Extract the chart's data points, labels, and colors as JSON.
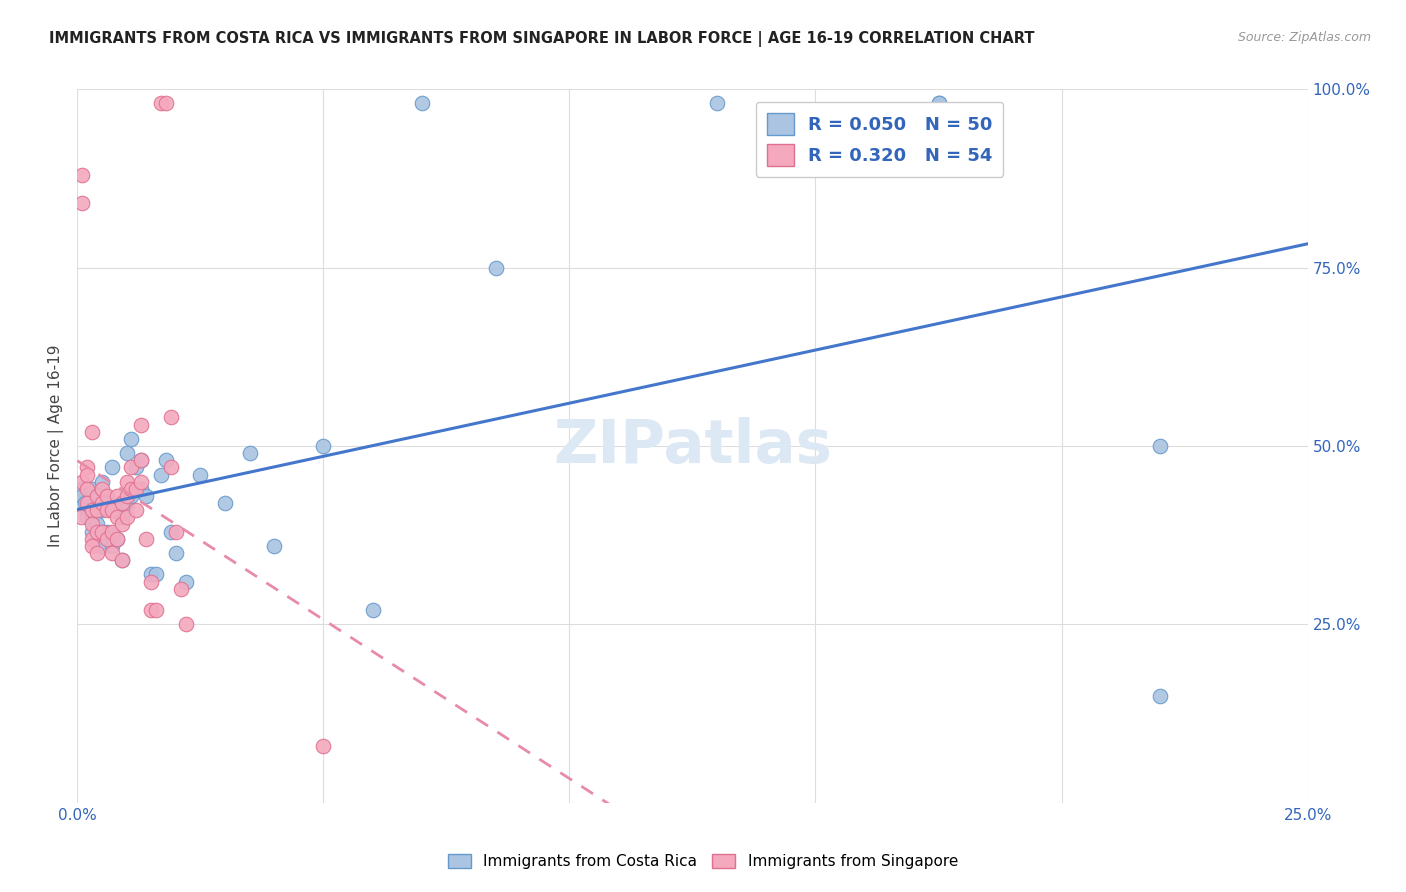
{
  "title": "IMMIGRANTS FROM COSTA RICA VS IMMIGRANTS FROM SINGAPORE IN LABOR FORCE | AGE 16-19 CORRELATION CHART",
  "source": "Source: ZipAtlas.com",
  "ylabel": "In Labor Force | Age 16-19",
  "xlim": [
    0.0,
    0.25
  ],
  "ylim": [
    0.0,
    1.0
  ],
  "xtick_pos": [
    0.0,
    0.05,
    0.1,
    0.15,
    0.2,
    0.25
  ],
  "xtick_labels": [
    "0.0%",
    "",
    "",
    "",
    "",
    "25.0%"
  ],
  "ytick_pos": [
    0.0,
    0.25,
    0.5,
    0.75,
    1.0
  ],
  "ytick_labels_right": [
    "",
    "25.0%",
    "50.0%",
    "75.0%",
    "100.0%"
  ],
  "costa_rica_color": "#aac4e2",
  "singapore_color": "#f4a9be",
  "costa_rica_edge": "#6699cc",
  "singapore_edge": "#e07090",
  "trend_costa_rica_color": "#4477cc",
  "trend_singapore_color": "#e88aaa",
  "watermark": "ZIPatlas",
  "legend_R_cr": "R = 0.050",
  "legend_N_cr": "N = 50",
  "legend_R_sg": "R = 0.320",
  "legend_N_sg": "N = 54",
  "costa_rica_x": [
    0.0008,
    0.001,
    0.0015,
    0.002,
    0.002,
    0.003,
    0.003,
    0.003,
    0.004,
    0.004,
    0.005,
    0.005,
    0.005,
    0.005,
    0.006,
    0.006,
    0.007,
    0.007,
    0.008,
    0.008,
    0.009,
    0.009,
    0.01,
    0.01,
    0.011,
    0.011,
    0.012,
    0.013,
    0.013,
    0.014,
    0.015,
    0.016,
    0.017,
    0.018,
    0.019,
    0.02,
    0.022,
    0.025,
    0.03,
    0.035,
    0.04,
    0.05,
    0.06,
    0.07,
    0.085,
    0.13,
    0.175,
    0.175,
    0.22,
    0.22
  ],
  "costa_rica_y": [
    0.44,
    0.43,
    0.42,
    0.41,
    0.4,
    0.38,
    0.4,
    0.44,
    0.39,
    0.43,
    0.36,
    0.38,
    0.41,
    0.45,
    0.42,
    0.38,
    0.36,
    0.47,
    0.37,
    0.41,
    0.34,
    0.4,
    0.42,
    0.49,
    0.43,
    0.51,
    0.47,
    0.44,
    0.48,
    0.43,
    0.32,
    0.32,
    0.46,
    0.48,
    0.38,
    0.35,
    0.31,
    0.46,
    0.42,
    0.49,
    0.36,
    0.5,
    0.27,
    0.98,
    0.75,
    0.98,
    0.98,
    0.98,
    0.15,
    0.5
  ],
  "singapore_x": [
    0.0008,
    0.001,
    0.001,
    0.001,
    0.002,
    0.002,
    0.002,
    0.002,
    0.003,
    0.003,
    0.003,
    0.003,
    0.004,
    0.004,
    0.004,
    0.004,
    0.005,
    0.005,
    0.005,
    0.006,
    0.006,
    0.006,
    0.007,
    0.007,
    0.007,
    0.008,
    0.008,
    0.008,
    0.009,
    0.009,
    0.009,
    0.01,
    0.01,
    0.01,
    0.011,
    0.011,
    0.012,
    0.012,
    0.013,
    0.013,
    0.013,
    0.014,
    0.015,
    0.015,
    0.016,
    0.017,
    0.018,
    0.019,
    0.019,
    0.02,
    0.021,
    0.022,
    0.05,
    0.003
  ],
  "singapore_y": [
    0.4,
    0.88,
    0.84,
    0.45,
    0.47,
    0.46,
    0.44,
    0.42,
    0.41,
    0.39,
    0.37,
    0.36,
    0.43,
    0.41,
    0.38,
    0.35,
    0.44,
    0.42,
    0.38,
    0.43,
    0.41,
    0.37,
    0.41,
    0.38,
    0.35,
    0.43,
    0.4,
    0.37,
    0.42,
    0.39,
    0.34,
    0.45,
    0.43,
    0.4,
    0.47,
    0.44,
    0.44,
    0.41,
    0.53,
    0.48,
    0.45,
    0.37,
    0.31,
    0.27,
    0.27,
    0.98,
    0.98,
    0.54,
    0.47,
    0.38,
    0.3,
    0.25,
    0.08,
    0.52
  ]
}
